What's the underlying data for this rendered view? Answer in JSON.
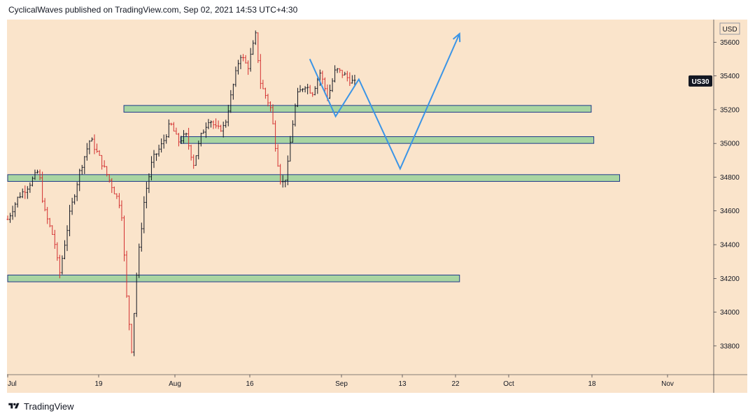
{
  "header": {
    "text": "CyclicalWaves published on TradingView.com, Sep 02, 2021 14:53 UTC+4:30"
  },
  "footer": {
    "brand": "TradingView",
    "logo_icon": "tradingview-logo-icon"
  },
  "colors": {
    "chart_bg": "#fae4cb",
    "candle_up": "#131722",
    "candle_down": "#d32f2f",
    "zone_fill": "#a8d5a2",
    "zone_border": "#1e3a8a",
    "projection": "#3b95e6",
    "symbol_badge_bg": "#131722",
    "symbol_badge_text": "#ffffff"
  },
  "chart_data": {
    "type": "candlestick",
    "symbol": "US30",
    "currency": "USD",
    "x_ticks": [
      "Jul",
      "19",
      "Aug",
      "16",
      "Sep",
      "13",
      "22",
      "Oct",
      "18",
      "Nov"
    ],
    "y_ticks": [
      33800,
      34000,
      34200,
      34400,
      34600,
      34800,
      35000,
      35200,
      35400,
      35600
    ],
    "ylim": [
      33630,
      35700
    ],
    "grid": false,
    "last_price": 35370,
    "price_path": [
      [
        0,
        34550
      ],
      [
        4,
        34680
      ],
      [
        8,
        34750
      ],
      [
        12,
        34840
      ],
      [
        14,
        34610
      ],
      [
        18,
        34430
      ],
      [
        20,
        34220
      ],
      [
        24,
        34580
      ],
      [
        28,
        34840
      ],
      [
        32,
        35030
      ],
      [
        36,
        34900
      ],
      [
        40,
        34760
      ],
      [
        44,
        34620
      ],
      [
        46,
        34100
      ],
      [
        48,
        33780
      ],
      [
        50,
        34240
      ],
      [
        53,
        34680
      ],
      [
        56,
        34900
      ],
      [
        60,
        35000
      ],
      [
        63,
        35120
      ],
      [
        66,
        35010
      ],
      [
        69,
        35050
      ],
      [
        72,
        34880
      ],
      [
        75,
        35050
      ],
      [
        78,
        35150
      ],
      [
        81,
        35080
      ],
      [
        84,
        35100
      ],
      [
        87,
        35320
      ],
      [
        90,
        35530
      ],
      [
        93,
        35450
      ],
      [
        96,
        35640
      ],
      [
        98,
        35350
      ],
      [
        100,
        35280
      ],
      [
        102,
        35200
      ],
      [
        104,
        34950
      ],
      [
        106,
        34750
      ],
      [
        108,
        34810
      ],
      [
        110,
        35080
      ],
      [
        112,
        35280
      ],
      [
        115,
        35350
      ],
      [
        118,
        35300
      ],
      [
        121,
        35420
      ],
      [
        124,
        35270
      ],
      [
        127,
        35440
      ],
      [
        130,
        35410
      ],
      [
        133,
        35370
      ],
      [
        135,
        35350
      ]
    ],
    "zones": [
      {
        "low": 35185,
        "high": 35225,
        "start_day": 45,
        "end_day": 226
      },
      {
        "low": 35000,
        "high": 35040,
        "start_day": 67,
        "end_day": 227
      },
      {
        "low": 34775,
        "high": 34815,
        "start_day": 0,
        "end_day": 237
      },
      {
        "low": 34180,
        "high": 34220,
        "start_day": 0,
        "end_day": 175
      }
    ],
    "projection_path": [
      [
        117,
        35500
      ],
      [
        127,
        35160
      ],
      [
        136,
        35380
      ],
      [
        152,
        34850
      ],
      [
        175,
        35650
      ]
    ]
  }
}
